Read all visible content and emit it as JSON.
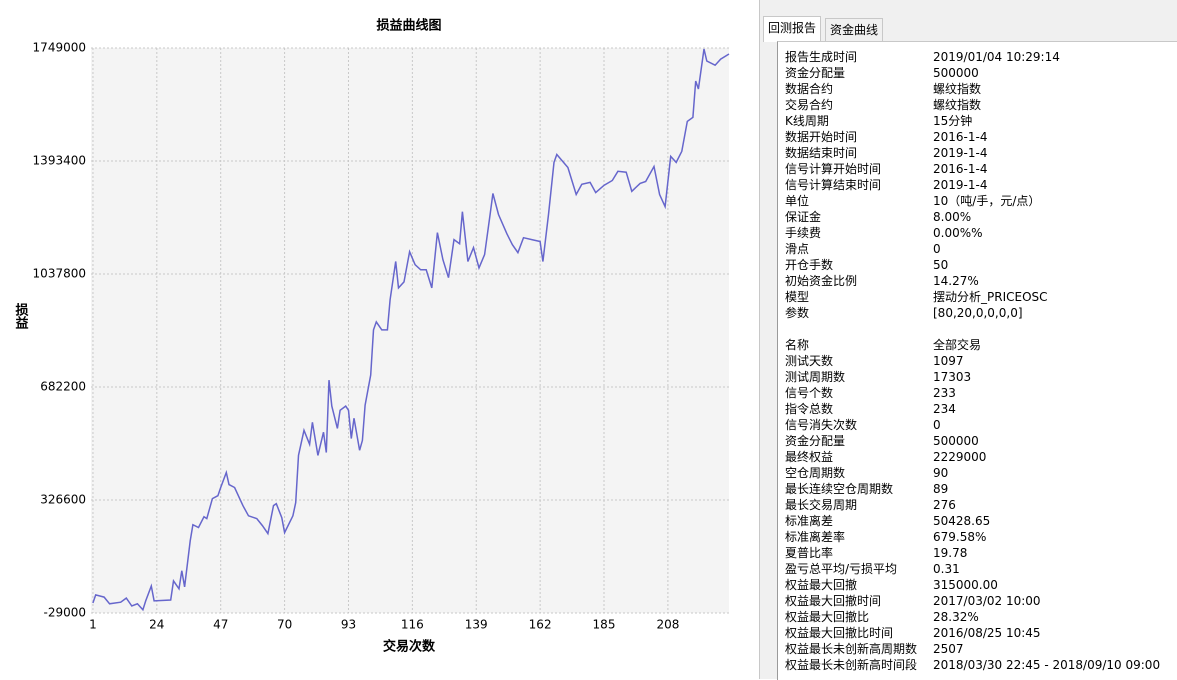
{
  "chart_data": {
    "type": "line",
    "title": "损益曲线图",
    "x_label": "交易次数",
    "y_label": "损益",
    "color": "#6666cc",
    "grid": true,
    "xlim": [
      0.3,
      230
    ],
    "xticks": [
      1,
      24,
      47,
      70,
      93,
      116,
      139,
      162,
      185,
      208
    ],
    "ylim": [
      -29000,
      1749000
    ],
    "yticks": [
      -29000,
      326600,
      682200,
      1037800,
      1393400,
      1749000
    ],
    "x": [
      1,
      2,
      5,
      7,
      11,
      13,
      15,
      17,
      19,
      20,
      22,
      23,
      29,
      30,
      32,
      33,
      34,
      36,
      37,
      39,
      41,
      42,
      44,
      46,
      47,
      49,
      50,
      52,
      55,
      57,
      60,
      62,
      64,
      66,
      67,
      69,
      70,
      73,
      74,
      75,
      77,
      79,
      80,
      82,
      84,
      85,
      86,
      87,
      89,
      90,
      92,
      93,
      94,
      95,
      97,
      98,
      99,
      101,
      102,
      103,
      105,
      107,
      108,
      110,
      111,
      113,
      115,
      117,
      119,
      121,
      123,
      125,
      127,
      129,
      131,
      133,
      134,
      136,
      138,
      140,
      142,
      144,
      145,
      147,
      150,
      152,
      154,
      156,
      159,
      162,
      163,
      165,
      167,
      168,
      172,
      175,
      177,
      180,
      182,
      185,
      188,
      190,
      193,
      195,
      198,
      200,
      203,
      205,
      207,
      209,
      211,
      213,
      215,
      217,
      218,
      219,
      221,
      222,
      225,
      227,
      230
    ],
    "values": [
      2600,
      28000,
      21000,
      0,
      5000,
      18000,
      -7000,
      0,
      -19000,
      9000,
      56000,
      9000,
      12000,
      72000,
      47000,
      104000,
      53000,
      198000,
      249000,
      240000,
      274000,
      268000,
      331000,
      340000,
      366000,
      413000,
      375000,
      366000,
      309000,
      277000,
      268000,
      246000,
      221000,
      309000,
      315000,
      271000,
      224000,
      277000,
      318000,
      467000,
      546000,
      502000,
      571000,
      467000,
      540000,
      476000,
      704000,
      622000,
      552000,
      609000,
      622000,
      609000,
      520000,
      584000,
      483000,
      514000,
      625000,
      720000,
      862000,
      887000,
      862000,
      862000,
      957000,
      1077000,
      994000,
      1013000,
      1108000,
      1067000,
      1051000,
      1051000,
      994000,
      1168000,
      1083000,
      1026000,
      1146000,
      1133000,
      1234000,
      1077000,
      1121000,
      1057000,
      1099000,
      1225000,
      1291000,
      1225000,
      1165000,
      1130000,
      1105000,
      1152000,
      1146000,
      1140000,
      1077000,
      1225000,
      1389000,
      1414000,
      1373000,
      1288000,
      1320000,
      1326000,
      1294000,
      1317000,
      1332000,
      1361000,
      1358000,
      1298000,
      1323000,
      1329000,
      1376000,
      1288000,
      1250000,
      1408000,
      1389000,
      1424000,
      1518000,
      1531000,
      1645000,
      1620000,
      1746000,
      1708000,
      1695000,
      1714000,
      1730000
    ]
  },
  "report": {
    "tabs": [
      "回测报告",
      "资金曲线"
    ],
    "sections": [
      [
        [
          "报告生成时间",
          "2019/01/04 10:29:14"
        ],
        [
          "资金分配量",
          "500000"
        ],
        [
          "数据合约",
          "螺纹指数"
        ],
        [
          "交易合约",
          "螺纹指数"
        ],
        [
          "K线周期",
          "15分钟"
        ],
        [
          "数据开始时间",
          "2016-1-4"
        ],
        [
          "数据结束时间",
          "2019-1-4"
        ],
        [
          "信号计算开始时间",
          "2016-1-4"
        ],
        [
          "信号计算结束时间",
          "2019-1-4"
        ],
        [
          "单位",
          "10（吨/手，元/点）"
        ],
        [
          "保证金",
          "8.00%"
        ],
        [
          "手续费",
          "0.00%%"
        ],
        [
          "滑点",
          "0"
        ],
        [
          "开仓手数",
          "50"
        ],
        [
          "初始资金比例",
          "14.27%"
        ],
        [
          "模型",
          "摆动分析_PRICEOSC"
        ],
        [
          "参数",
          "[80,20,0,0,0,0]"
        ]
      ],
      [
        [
          "名称",
          "全部交易"
        ],
        [
          "测试天数",
          "1097"
        ],
        [
          "测试周期数",
          "17303"
        ],
        [
          "信号个数",
          "233"
        ],
        [
          "指令总数",
          "234"
        ],
        [
          "信号消失次数",
          "0"
        ],
        [
          "资金分配量",
          "500000"
        ],
        [
          "最终权益",
          "2229000"
        ],
        [
          "空仓周期数",
          "90"
        ],
        [
          "最长连续空仓周期数",
          "89"
        ],
        [
          "最长交易周期",
          "276"
        ],
        [
          "标准离差",
          "50428.65"
        ],
        [
          "标准离差率",
          "679.58%"
        ],
        [
          "夏普比率",
          "19.78"
        ],
        [
          "盈亏总平均/亏损平均",
          "0.31"
        ],
        [
          "权益最大回撤",
          "315000.00"
        ],
        [
          "权益最大回撤时间",
          "2017/03/02 10:00"
        ],
        [
          "权益最大回撤比",
          "28.32%"
        ],
        [
          "权益最大回撤比时间",
          "2016/08/25 10:45"
        ],
        [
          "权益最长未创新高周期数",
          "2507"
        ],
        [
          "权益最长未创新高时间段",
          "2018/03/30 22:45 - 2018/09/10 09:00"
        ]
      ]
    ]
  }
}
